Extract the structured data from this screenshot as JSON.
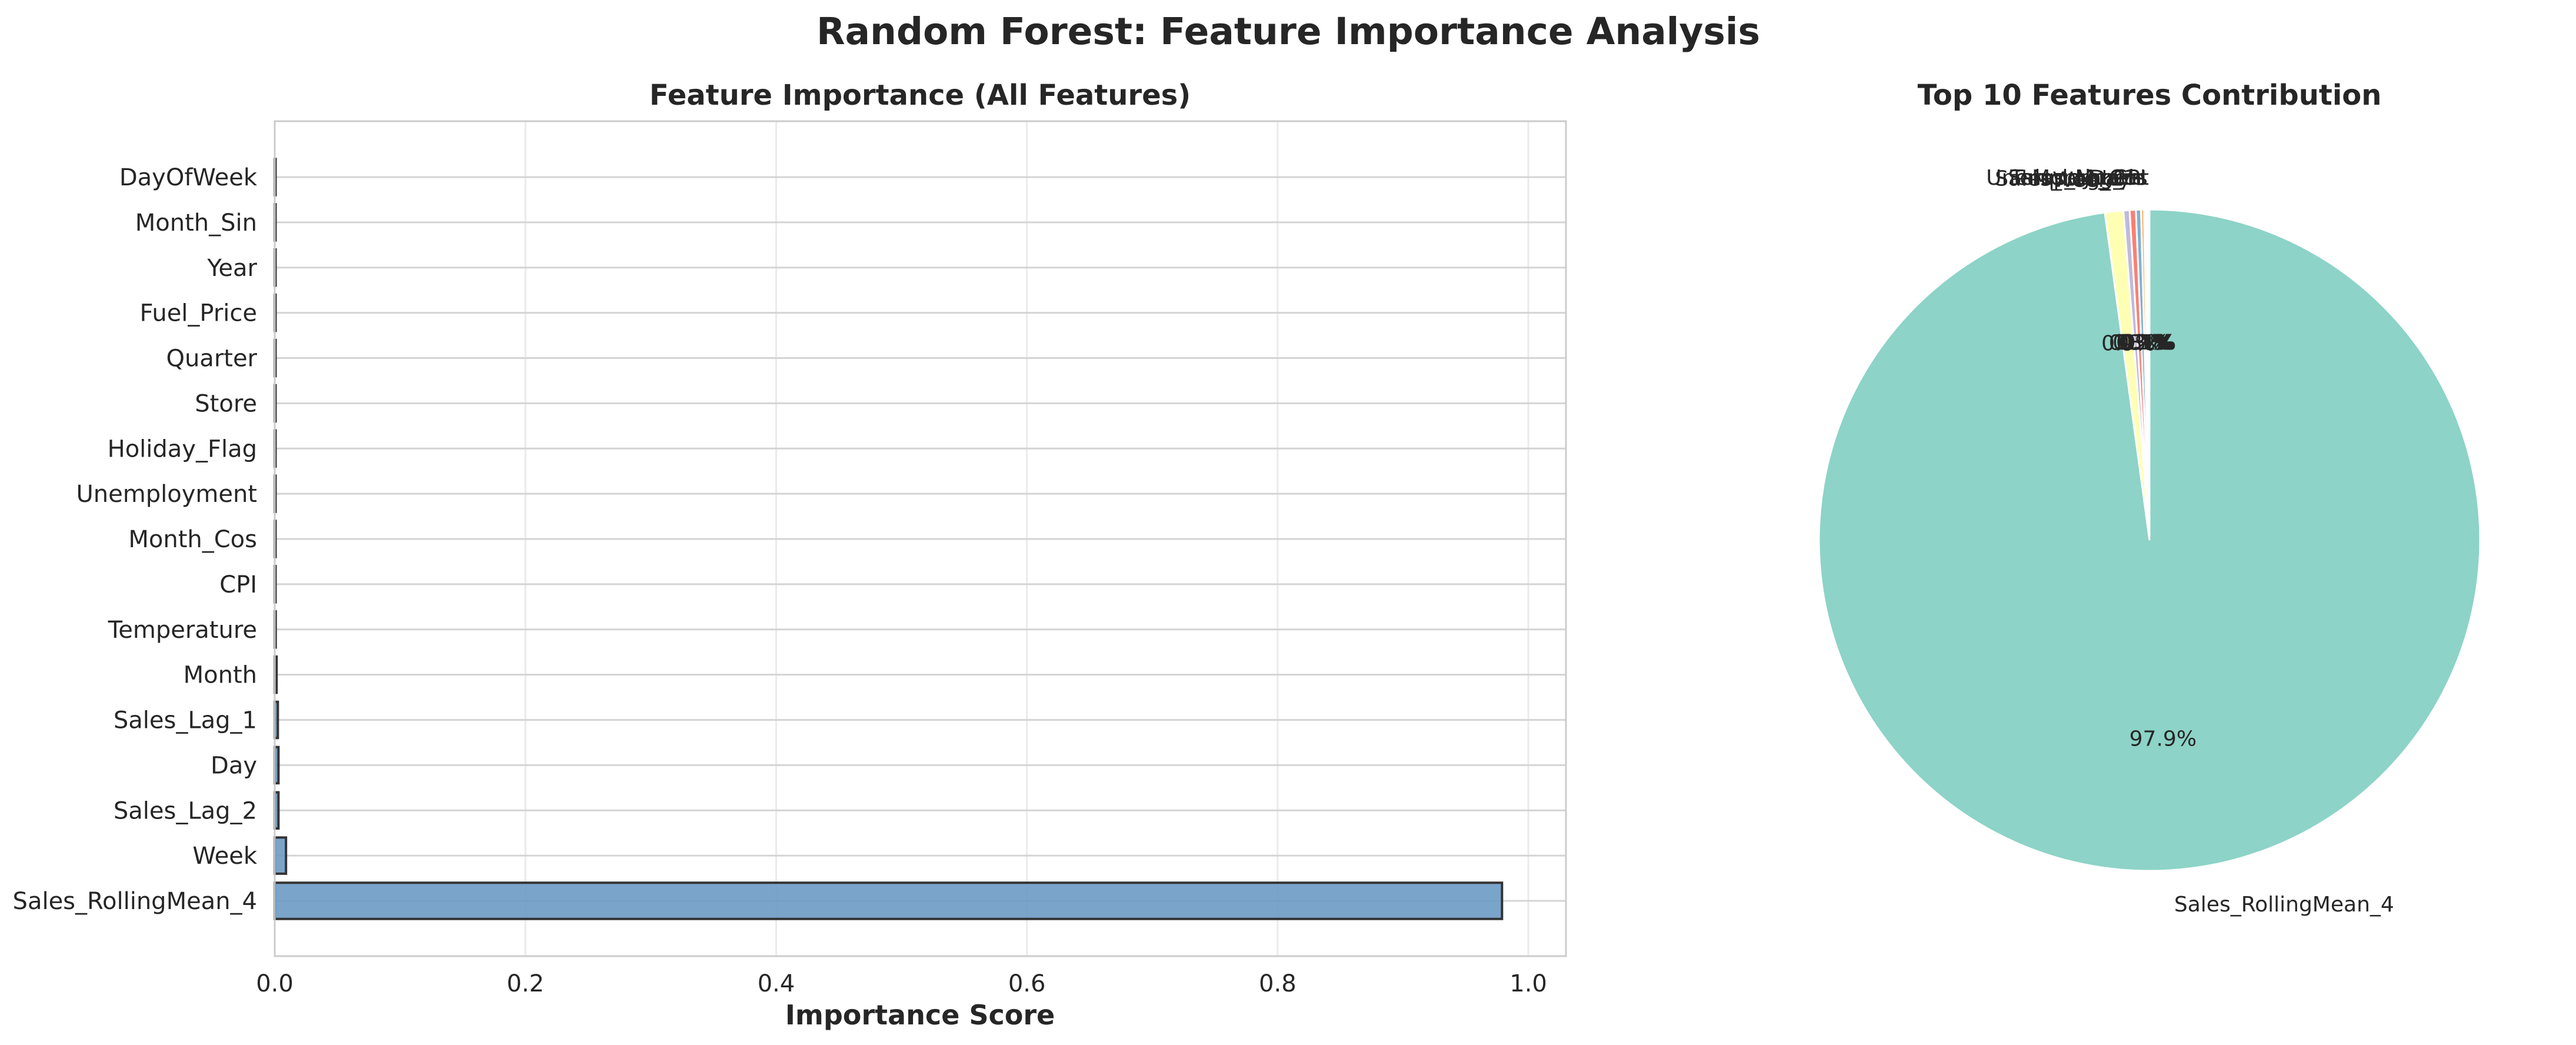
{
  "figure_title": "Random Forest: Feature Importance Analysis",
  "chart_data": [
    {
      "type": "bar",
      "orientation": "horizontal",
      "title": "Feature Importance (All Features)",
      "xlabel": "Importance Score",
      "ylabel": "",
      "xlim": [
        0,
        1.03
      ],
      "xticks": [
        "0.0",
        "0.2",
        "0.4",
        "0.6",
        "0.8",
        "1.0"
      ],
      "grid": true,
      "bar_color": "#6b9ac4",
      "edge_color": "#333333",
      "categories": [
        "Sales_RollingMean_4",
        "Week",
        "Sales_Lag_2",
        "Day",
        "Sales_Lag_1",
        "Month",
        "Temperature",
        "CPI",
        "Month_Cos",
        "Unemployment",
        "Holiday_Flag",
        "Store",
        "Quarter",
        "Fuel_Price",
        "Year",
        "Month_Sin",
        "DayOfWeek"
      ],
      "values": [
        0.979,
        0.009,
        0.003,
        0.003,
        0.0025,
        0.0015,
        0.0008,
        0.0007,
        0.0006,
        0.0005,
        0.0005,
        0.0004,
        0.0002,
        0.0002,
        0.0001,
        0.0001,
        0.0001
      ]
    },
    {
      "type": "pie",
      "title": "Top 10 Features Contribution",
      "start_angle": 90,
      "counterclock": false,
      "categories": [
        "Sales_RollingMean_4",
        "Week",
        "Sales_Lag_2",
        "Day",
        "Sales_Lag_1",
        "Month",
        "Temperature",
        "CPI",
        "Month_Cos",
        "Unemployment"
      ],
      "values": [
        97.9,
        0.9,
        0.3,
        0.3,
        0.25,
        0.15,
        0.08,
        0.07,
        0.06,
        0.05
      ],
      "percent_labels": [
        "97.9%",
        "0.9%",
        "0.3%",
        "0.3%",
        "0.2%",
        "0.1%",
        "0.1%",
        "0.1%",
        "0.1%",
        "0.1%"
      ],
      "colors": [
        "#8dd3c7",
        "#ffffb3",
        "#bebada",
        "#fb8072",
        "#80b1d3",
        "#fdb462",
        "#b3de69",
        "#fccde5",
        "#d9d9d9",
        "#bc80bd"
      ]
    }
  ]
}
